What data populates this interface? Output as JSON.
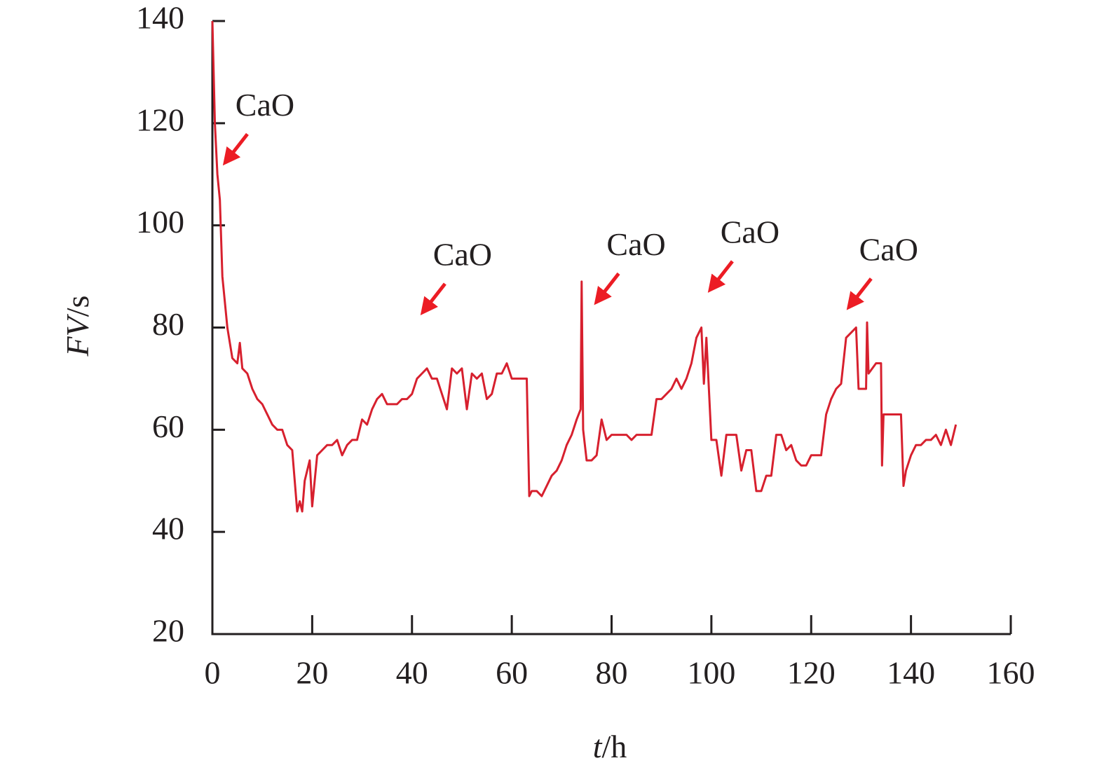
{
  "chart_data": {
    "type": "line",
    "xlabel": {
      "symbol": "t",
      "unit": "/h"
    },
    "ylabel": {
      "symbol": "FV",
      "unit": "/s"
    },
    "xlim": [
      0,
      160
    ],
    "xticks": [
      0,
      20,
      40,
      60,
      80,
      100,
      120,
      140,
      160
    ],
    "ylim": [
      20,
      140
    ],
    "yticks": [
      20,
      40,
      60,
      80,
      100,
      120,
      140
    ],
    "series": [
      {
        "color": "#d7202e",
        "x": [
          0,
          0.5,
          1,
          1.5,
          2,
          3,
          4,
          5,
          5.5,
          6,
          7,
          8,
          9,
          10,
          11,
          12,
          13,
          14,
          15,
          16,
          16.5,
          17,
          17.5,
          18,
          18.5,
          19,
          19.5,
          20,
          21,
          22,
          23,
          24,
          25,
          26,
          27,
          28,
          29,
          30,
          31,
          32,
          33,
          34,
          35,
          36,
          37,
          38,
          39,
          40,
          41,
          42,
          43,
          44,
          45,
          46,
          47,
          48,
          49,
          50,
          51,
          52,
          53,
          54,
          55,
          56,
          57,
          58,
          59,
          60,
          61,
          62,
          63,
          63.5,
          64,
          65,
          66,
          67,
          68,
          69,
          70,
          71,
          72,
          73,
          73.8,
          74,
          74.3,
          75,
          76,
          77,
          78,
          79,
          80,
          81,
          82,
          83,
          84,
          85,
          86,
          87,
          88,
          89,
          90,
          91,
          92,
          93,
          94,
          95,
          96,
          97,
          98,
          98.5,
          99,
          99.5,
          100,
          101,
          102,
          103,
          104,
          105,
          106,
          107,
          108,
          109,
          110,
          111,
          112,
          113,
          114,
          115,
          116,
          117,
          118,
          119,
          120,
          121,
          122,
          123,
          124,
          125,
          126,
          127,
          128,
          129,
          129.5,
          131,
          131.2,
          131.5,
          133,
          134,
          134.2,
          134.5,
          136,
          137,
          138,
          138.5,
          139,
          140,
          141,
          142,
          143,
          144,
          145,
          146,
          147,
          148,
          149
        ],
        "values": [
          140,
          120,
          110,
          105,
          90,
          80,
          74,
          73,
          77,
          72,
          71,
          68,
          66,
          65,
          63,
          61,
          60,
          60,
          57,
          56,
          50,
          44,
          46,
          44,
          50,
          52,
          54,
          45,
          55,
          56,
          57,
          57,
          58,
          55,
          57,
          58,
          58,
          62,
          61,
          64,
          66,
          67,
          65,
          65,
          65,
          66,
          66,
          67,
          70,
          71,
          72,
          70,
          70,
          67,
          64,
          72,
          71,
          72,
          64,
          71,
          70,
          71,
          66,
          67,
          71,
          71,
          73,
          70,
          70,
          70,
          70,
          47,
          48,
          48,
          47,
          49,
          51,
          52,
          54,
          57,
          59,
          62,
          64,
          89,
          60,
          54,
          54,
          55,
          62,
          58,
          59,
          59,
          59,
          59,
          58,
          59,
          59,
          59,
          59,
          66,
          66,
          67,
          68,
          70,
          68,
          70,
          73,
          78,
          80,
          69,
          78,
          68,
          58,
          58,
          51,
          59,
          59,
          59,
          52,
          56,
          56,
          48,
          48,
          51,
          51,
          59,
          59,
          56,
          57,
          54,
          53,
          53,
          55,
          55,
          55,
          63,
          66,
          68,
          69,
          78,
          79,
          80,
          68,
          68,
          81,
          71,
          73,
          73,
          53,
          63,
          63,
          63,
          63,
          49,
          52,
          55,
          57,
          57,
          58,
          58,
          59,
          57,
          60,
          57,
          61
        ]
      }
    ],
    "annotations": [
      {
        "text": "CaO",
        "x": 2.1,
        "y": 111.7
      },
      {
        "text": "CaO",
        "x": 41.7,
        "y": 82.4
      },
      {
        "text": "CaO",
        "x": 76.5,
        "y": 84.4
      },
      {
        "text": "CaO",
        "x": 99.3,
        "y": 86.8
      },
      {
        "text": "CaO",
        "x": 127.1,
        "y": 83.4
      }
    ]
  }
}
